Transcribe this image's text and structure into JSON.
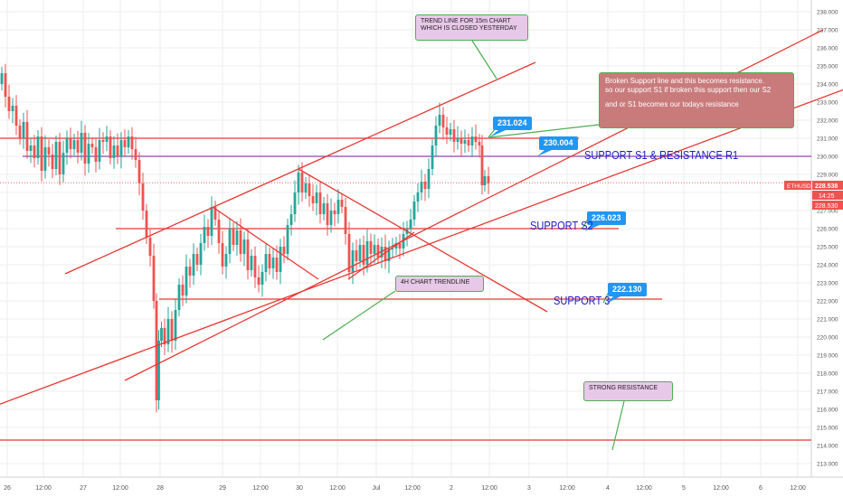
{
  "chart_data": {
    "type": "candlestick",
    "symbol": "ETHUSDT",
    "yaxis": {
      "ylim": [
        212.5,
        238.5
      ],
      "ticks": [
        "213.000",
        "214.000",
        "215.000",
        "216.000",
        "217.000",
        "218.000",
        "219.000",
        "220.000",
        "221.000",
        "222.000",
        "223.000",
        "224.000",
        "225.000",
        "226.000",
        "227.000",
        "228.000",
        "229.000",
        "230.000",
        "231.000",
        "232.000",
        "233.000",
        "234.000",
        "235.000",
        "236.000",
        "237.000",
        "238.000"
      ]
    },
    "xaxis": {
      "ticks": [
        "26",
        "12:00",
        "27",
        "12:00",
        "28",
        "29",
        "12:00",
        "30",
        "12:00",
        "Jul",
        "12:00",
        "2",
        "12:00",
        "3",
        "12:00",
        "4",
        "12:00",
        "5",
        "12:00",
        "6",
        "12:00"
      ]
    },
    "price_marker": {
      "symbol": "ETHUSDT",
      "price": "228.538",
      "countdown": "14:25",
      "low_tag": "228.530"
    },
    "horizontal_levels": [
      {
        "name": "resistance",
        "price": 231.0,
        "color": "#e53935"
      },
      {
        "name": "support-s1",
        "price": 230.0,
        "color": "#8e44ad"
      },
      {
        "name": "support-s2",
        "price": 226.0,
        "color": "#e53935"
      },
      {
        "name": "support-3",
        "price": 222.1,
        "color": "#e53935"
      },
      {
        "name": "strong-resistance",
        "price": 214.3,
        "color": "#e53935"
      }
    ],
    "trendlines": [
      {
        "from": [
          -5,
          216.2
        ],
        "to": [
          1110,
          237.0
        ]
      },
      {
        "from": [
          72,
          223.5
        ],
        "to": [
          592,
          235.2
        ]
      },
      {
        "from": [
          138,
          217.6
        ],
        "to": [
          910,
          237.0
        ]
      },
      {
        "from": [
          235,
          227.2
        ],
        "to": [
          352,
          223.2
        ]
      },
      {
        "from": [
          330,
          229.3
        ],
        "to": [
          605,
          221.4
        ]
      },
      {
        "from": [
          385,
          223.2
        ],
        "to": [
          458,
          225.8
        ]
      },
      {
        "from": [
          135,
          232.0
        ],
        "to": [
          935,
          232.0
        ],
        "hidden": true
      }
    ],
    "series_points": [
      [
        0,
        234.0
      ],
      [
        4,
        234.6
      ],
      [
        8,
        233.3
      ],
      [
        12,
        232.5
      ],
      [
        16,
        232.8
      ],
      [
        20,
        231.7
      ],
      [
        24,
        231.0
      ],
      [
        28,
        231.9
      ],
      [
        32,
        230.3
      ],
      [
        36,
        230.6
      ],
      [
        40,
        229.9
      ],
      [
        44,
        231.1
      ],
      [
        48,
        229.2
      ],
      [
        52,
        230.5
      ],
      [
        56,
        230.1
      ],
      [
        60,
        229.3
      ],
      [
        64,
        230.8
      ],
      [
        68,
        229.0
      ],
      [
        72,
        230.2
      ],
      [
        76,
        231.0
      ],
      [
        80,
        230.4
      ],
      [
        84,
        230.9
      ],
      [
        88,
        230.2
      ],
      [
        92,
        231.3
      ],
      [
        96,
        229.6
      ],
      [
        100,
        230.7
      ],
      [
        104,
        230.5
      ],
      [
        108,
        229.7
      ],
      [
        112,
        230.9
      ],
      [
        116,
        230.8
      ],
      [
        120,
        231.1
      ],
      [
        124,
        229.9
      ],
      [
        128,
        230.6
      ],
      [
        132,
        230.0
      ],
      [
        136,
        230.9
      ],
      [
        140,
        230.5
      ],
      [
        144,
        231.1
      ],
      [
        148,
        230.4
      ],
      [
        152,
        229.8
      ],
      [
        156,
        228.5
      ],
      [
        160,
        227.0
      ],
      [
        164,
        225.5
      ],
      [
        168,
        224.5
      ],
      [
        172,
        222.0
      ],
      [
        174,
        216.5
      ],
      [
        177,
        219.8
      ],
      [
        180,
        220.5
      ],
      [
        184,
        219.6
      ],
      [
        188,
        221.0
      ],
      [
        192,
        219.8
      ],
      [
        196,
        221.5
      ],
      [
        200,
        222.9
      ],
      [
        204,
        222.3
      ],
      [
        208,
        223.9
      ],
      [
        212,
        223.4
      ],
      [
        216,
        224.6
      ],
      [
        220,
        224.0
      ],
      [
        224,
        225.2
      ],
      [
        228,
        226.1
      ],
      [
        232,
        225.6
      ],
      [
        236,
        227.2
      ],
      [
        240,
        226.5
      ],
      [
        244,
        225.2
      ],
      [
        248,
        223.9
      ],
      [
        252,
        224.6
      ],
      [
        256,
        226.0
      ],
      [
        260,
        225.1
      ],
      [
        264,
        225.9
      ],
      [
        268,
        224.6
      ],
      [
        272,
        225.4
      ],
      [
        276,
        223.7
      ],
      [
        280,
        224.5
      ],
      [
        284,
        223.3
      ],
      [
        288,
        222.9
      ],
      [
        292,
        223.6
      ],
      [
        296,
        224.6
      ],
      [
        300,
        223.8
      ],
      [
        304,
        224.4
      ],
      [
        308,
        223.6
      ],
      [
        312,
        225.0
      ],
      [
        316,
        224.6
      ],
      [
        320,
        226.2
      ],
      [
        324,
        226.8
      ],
      [
        328,
        228.0
      ],
      [
        332,
        229.1
      ],
      [
        336,
        228.0
      ],
      [
        340,
        228.5
      ],
      [
        344,
        227.8
      ],
      [
        348,
        227.4
      ],
      [
        352,
        228.0
      ],
      [
        356,
        226.8
      ],
      [
        360,
        227.4
      ],
      [
        364,
        226.2
      ],
      [
        368,
        227.0
      ],
      [
        372,
        226.8
      ],
      [
        376,
        227.6
      ],
      [
        380,
        227.2
      ],
      [
        384,
        225.7
      ],
      [
        388,
        223.6
      ],
      [
        392,
        224.8
      ],
      [
        396,
        224.2
      ],
      [
        400,
        225.1
      ],
      [
        404,
        224.0
      ],
      [
        408,
        225.3
      ],
      [
        412,
        224.6
      ],
      [
        416,
        225.1
      ],
      [
        420,
        224.4
      ],
      [
        424,
        225.0
      ],
      [
        428,
        224.2
      ],
      [
        432,
        224.9
      ],
      [
        436,
        224.9
      ],
      [
        440,
        225.2
      ],
      [
        444,
        224.9
      ],
      [
        448,
        225.7
      ],
      [
        452,
        226.0
      ],
      [
        456,
        226.5
      ],
      [
        460,
        227.5
      ],
      [
        464,
        228.0
      ],
      [
        468,
        228.6
      ],
      [
        472,
        228.2
      ],
      [
        476,
        229.3
      ],
      [
        480,
        230.6
      ],
      [
        484,
        231.7
      ],
      [
        488,
        232.3
      ],
      [
        492,
        231.6
      ],
      [
        496,
        231.2
      ],
      [
        500,
        231.5
      ],
      [
        504,
        230.8
      ],
      [
        508,
        231.0
      ],
      [
        512,
        230.7
      ],
      [
        516,
        230.9
      ],
      [
        520,
        230.6
      ],
      [
        524,
        231.1
      ],
      [
        528,
        230.8
      ],
      [
        532,
        230.6
      ],
      [
        534,
        228.4
      ],
      [
        538,
        228.9
      ],
      [
        542,
        228.5
      ]
    ]
  },
  "annotations": {
    "trend_15m": "TREND LINE FOR 15m CHART WHICH IS CLOSED YESTERDAY",
    "broken_support_l1": "Broken Support line and this becomes resistance.",
    "broken_support_l2": "so our support S1 if broken this support then our S2",
    "broken_support_l3": "and or S1 becomes our todays resistance",
    "trendline_4h": "4H CHART TRENDLINE",
    "strong_resistance": "STRONG RESISTANCE",
    "support_s1": "SUPPORT S1 & RESISTANCE R1",
    "support_s2": "SUPPORT S2",
    "support_3": "SUPPORT 3",
    "tag_231": "231.024",
    "tag_230": "230.004",
    "tag_226": "226.023",
    "tag_222": "222.130"
  },
  "colors": {
    "bull": "#26a69a",
    "bear": "#ef5350",
    "trendline": "#e53935",
    "grid": "#eeeeee",
    "axis_text": "#555555"
  }
}
